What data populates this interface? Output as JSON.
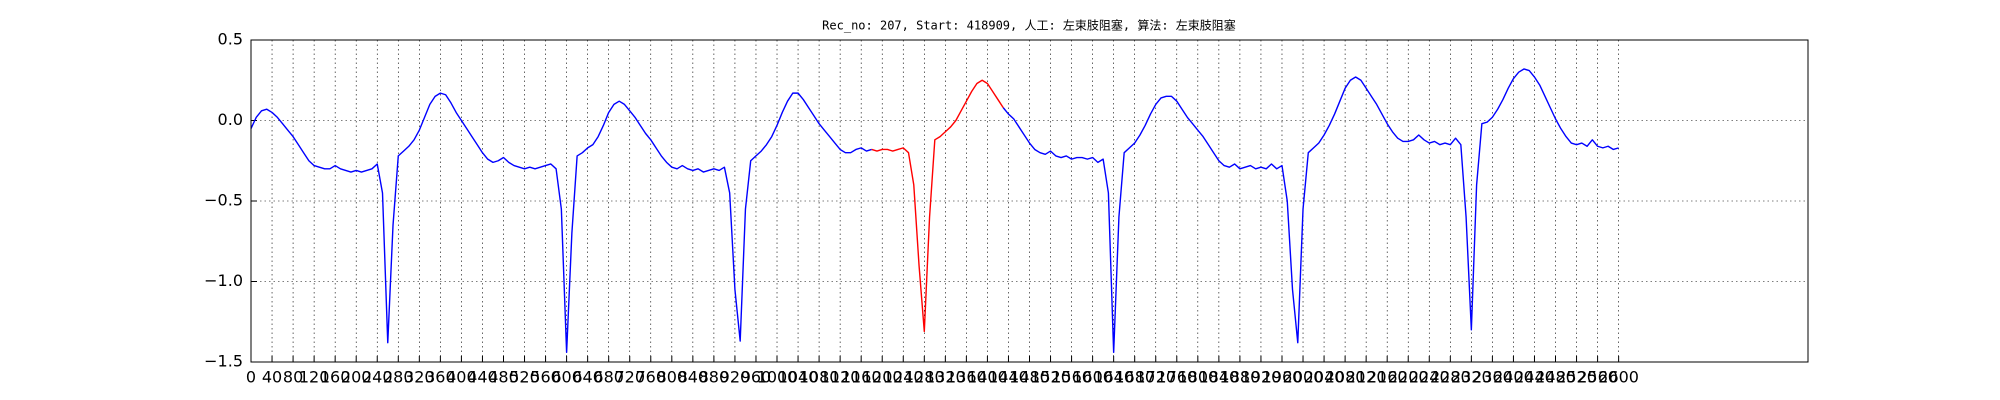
{
  "chart_data": {
    "type": "line",
    "title": "Rec_no: 207, Start: 418909, 人工: 左束肢阻塞, 算法: 左束肢阻塞",
    "x": [
      0,
      10,
      20,
      30,
      40,
      50,
      60,
      70,
      80,
      90,
      100,
      110,
      120,
      130,
      140,
      150,
      160,
      170,
      180,
      190,
      200,
      210,
      220,
      230,
      240,
      250,
      260,
      270,
      280,
      290,
      300,
      310,
      320,
      330,
      340,
      350,
      360,
      370,
      380,
      390,
      400,
      410,
      420,
      430,
      440,
      450,
      460,
      470,
      480,
      490,
      500,
      510,
      520,
      530,
      540,
      550,
      560,
      570,
      580,
      590,
      600,
      610,
      620,
      630,
      640,
      650,
      660,
      670,
      680,
      690,
      700,
      710,
      720,
      730,
      740,
      750,
      760,
      770,
      780,
      790,
      800,
      810,
      820,
      830,
      840,
      850,
      860,
      870,
      880,
      890,
      900,
      910,
      920,
      930,
      940,
      950,
      960,
      970,
      980,
      990,
      1000,
      1010,
      1020,
      1030,
      1040,
      1050,
      1060,
      1070,
      1080,
      1090,
      1100,
      1110,
      1120,
      1130,
      1140,
      1150,
      1160,
      1170,
      1180,
      1190,
      1200,
      1210,
      1220,
      1230,
      1240,
      1250,
      1260,
      1270,
      1280,
      1290,
      1300,
      1310,
      1320,
      1330,
      1340,
      1350,
      1360,
      1370,
      1380,
      1390,
      1400,
      1410,
      1420,
      1430,
      1440,
      1450,
      1460,
      1470,
      1480,
      1490,
      1500,
      1510,
      1520,
      1530,
      1540,
      1550,
      1560,
      1570,
      1580,
      1590,
      1600,
      1610,
      1620,
      1630,
      1640,
      1650,
      1660,
      1670,
      1680,
      1690,
      1700,
      1710,
      1720,
      1730,
      1740,
      1750,
      1760,
      1770,
      1780,
      1790,
      1800,
      1810,
      1820,
      1830,
      1840,
      1850,
      1860,
      1870,
      1880,
      1890,
      1900,
      1910,
      1920,
      1930,
      1940,
      1950,
      1960,
      1970,
      1980,
      1990,
      2000,
      2010,
      2020,
      2030,
      2040,
      2050,
      2060,
      2070,
      2080,
      2090,
      2100,
      2110,
      2120,
      2130,
      2140,
      2150,
      2160,
      2170,
      2180,
      2190,
      2200,
      2210,
      2220,
      2230,
      2240,
      2250,
      2260,
      2270,
      2280,
      2290,
      2300,
      2310,
      2320,
      2330,
      2340,
      2350,
      2360,
      2370,
      2380,
      2390,
      2400,
      2410,
      2420,
      2430,
      2440,
      2450,
      2460,
      2470,
      2480,
      2490,
      2500,
      2510,
      2520,
      2530,
      2540,
      2550,
      2560,
      2570,
      2580,
      2590,
      2600
    ],
    "series": [
      {
        "color": "#0000ff",
        "values": [
          -0.05,
          0.02,
          0.06,
          0.07,
          0.05,
          0.02,
          -0.02,
          -0.06,
          -0.1,
          -0.15,
          -0.2,
          -0.25,
          -0.28,
          -0.29,
          -0.3,
          -0.3,
          -0.28,
          -0.3,
          -0.31,
          -0.32,
          -0.31,
          -0.32,
          -0.31,
          -0.3,
          -0.27,
          -0.45,
          -1.38,
          -0.65,
          -0.22,
          -0.19,
          -0.16,
          -0.12,
          -0.06,
          0.02,
          0.1,
          0.15,
          0.17,
          0.16,
          0.11,
          0.05,
          0,
          -0.05,
          -0.1,
          -0.15,
          -0.2,
          -0.24,
          -0.26,
          -0.25,
          -0.23,
          -0.26,
          -0.28,
          -0.29,
          -0.3,
          -0.29,
          -0.3,
          -0.29,
          -0.28,
          -0.27,
          -0.3,
          -0.55,
          -1.44,
          -0.7,
          -0.22,
          -0.2,
          -0.17,
          -0.15,
          -0.1,
          -0.03,
          0.05,
          0.1,
          0.12,
          0.1,
          0.06,
          0.02,
          -0.03,
          -0.08,
          -0.12,
          -0.17,
          -0.22,
          -0.26,
          -0.29,
          -0.3,
          -0.28,
          -0.3,
          -0.31,
          -0.3,
          -0.32,
          -0.31,
          -0.3,
          -0.31,
          -0.29,
          -0.45,
          -1.05,
          -1.37,
          -0.55,
          -0.25,
          -0.22,
          -0.19,
          -0.15,
          -0.1,
          -0.03,
          0.05,
          0.12,
          0.17,
          0.17,
          0.13,
          0.08,
          0.03,
          -0.02,
          -0.06,
          -0.1,
          -0.14,
          -0.18,
          -0.2,
          -0.2,
          -0.18,
          -0.17,
          -0.19,
          -0.18,
          null,
          null,
          null,
          null,
          null,
          null,
          null,
          null,
          null,
          null,
          null,
          null,
          null,
          null,
          null,
          null,
          null,
          null,
          null,
          null,
          null,
          null,
          null,
          null,
          0.08,
          0.04,
          0.01,
          -0.04,
          -0.09,
          -0.14,
          -0.18,
          -0.2,
          -0.21,
          -0.19,
          -0.22,
          -0.23,
          -0.22,
          -0.24,
          -0.23,
          -0.23,
          -0.24,
          -0.23,
          -0.26,
          -0.24,
          -0.45,
          -1.44,
          -0.6,
          -0.2,
          -0.17,
          -0.14,
          -0.09,
          -0.03,
          0.04,
          0.1,
          0.14,
          0.15,
          0.15,
          0.12,
          0.07,
          0.02,
          -0.02,
          -0.06,
          -0.1,
          -0.15,
          -0.2,
          -0.25,
          -0.28,
          -0.29,
          -0.27,
          -0.3,
          -0.29,
          -0.28,
          -0.3,
          -0.29,
          -0.3,
          -0.27,
          -0.3,
          -0.28,
          -0.5,
          -1.05,
          -1.38,
          -0.55,
          -0.2,
          -0.17,
          -0.14,
          -0.09,
          -0.03,
          0.04,
          0.12,
          0.2,
          0.25,
          0.27,
          0.25,
          0.2,
          0.15,
          0.1,
          0.04,
          -0.02,
          -0.07,
          -0.11,
          -0.13,
          -0.13,
          -0.12,
          -0.09,
          -0.12,
          -0.14,
          -0.13,
          -0.15,
          -0.14,
          -0.15,
          -0.11,
          -0.15,
          -0.6,
          -1.3,
          -0.4,
          -0.02,
          -0.01,
          0.02,
          0.07,
          0.13,
          0.2,
          0.26,
          0.3,
          0.32,
          0.31,
          0.27,
          0.22,
          0.15,
          0.08,
          0.01,
          -0.05,
          -0.1,
          -0.14,
          -0.15,
          -0.14,
          -0.16,
          -0.12,
          -0.16,
          -0.17,
          -0.16,
          -0.18,
          -0.17
        ]
      },
      {
        "color": "#ff0000",
        "values": [
          null,
          null,
          null,
          null,
          null,
          null,
          null,
          null,
          null,
          null,
          null,
          null,
          null,
          null,
          null,
          null,
          null,
          null,
          null,
          null,
          null,
          null,
          null,
          null,
          null,
          null,
          null,
          null,
          null,
          null,
          null,
          null,
          null,
          null,
          null,
          null,
          null,
          null,
          null,
          null,
          null,
          null,
          null,
          null,
          null,
          null,
          null,
          null,
          null,
          null,
          null,
          null,
          null,
          null,
          null,
          null,
          null,
          null,
          null,
          null,
          null,
          null,
          null,
          null,
          null,
          null,
          null,
          null,
          null,
          null,
          null,
          null,
          null,
          null,
          null,
          null,
          null,
          null,
          null,
          null,
          null,
          null,
          null,
          null,
          null,
          null,
          null,
          null,
          null,
          null,
          null,
          null,
          null,
          null,
          null,
          null,
          null,
          null,
          null,
          null,
          null,
          null,
          null,
          null,
          null,
          null,
          null,
          null,
          null,
          null,
          null,
          null,
          null,
          null,
          null,
          null,
          null,
          null,
          -0.18,
          -0.19,
          -0.18,
          -0.18,
          -0.19,
          -0.18,
          -0.17,
          -0.2,
          -0.4,
          -0.9,
          -1.31,
          -0.6,
          -0.12,
          -0.1,
          -0.07,
          -0.04,
          0,
          0.06,
          0.12,
          0.18,
          0.23,
          0.25,
          0.23,
          0.18,
          0.13,
          0.08,
          null,
          null,
          null,
          null,
          null,
          null,
          null,
          null,
          null,
          null,
          null,
          null,
          null,
          null,
          null,
          null,
          null,
          null,
          null,
          null,
          null,
          null,
          null,
          null,
          null,
          null,
          null,
          null,
          null,
          null,
          null,
          null,
          null,
          null,
          null,
          null,
          null,
          null,
          null,
          null,
          null,
          null,
          null,
          null,
          null,
          null,
          null,
          null,
          null,
          null,
          null,
          null,
          null,
          null,
          null,
          null,
          null,
          null,
          null,
          null,
          null,
          null,
          null,
          null,
          null,
          null,
          null,
          null,
          null,
          null,
          null,
          null,
          null,
          null,
          null,
          null,
          null,
          null,
          null,
          null,
          null,
          null,
          null,
          null,
          null,
          null,
          null,
          null,
          null,
          null,
          null,
          null,
          null,
          null,
          null,
          null,
          null,
          null,
          null,
          null,
          null,
          null,
          null,
          null,
          null,
          null,
          null,
          null,
          null,
          null,
          null,
          null,
          null,
          null,
          null,
          null,
          null
        ]
      }
    ],
    "xlim": [
      0,
      2960
    ],
    "xticks": [
      0,
      40,
      80,
      120,
      160,
      200,
      240,
      280,
      320,
      360,
      400,
      440,
      480,
      520,
      560,
      600,
      640,
      680,
      720,
      760,
      800,
      840,
      880,
      920,
      960,
      1000,
      1040,
      1080,
      1120,
      1160,
      1200,
      1240,
      1280,
      1320,
      1360,
      1400,
      1440,
      1480,
      1520,
      1560,
      1600,
      1640,
      1680,
      1720,
      1760,
      1800,
      1840,
      1880,
      1920,
      1960,
      2000,
      2040,
      2080,
      2120,
      2160,
      2200,
      2240,
      2280,
      2320,
      2360,
      2400,
      2440,
      2480,
      2520,
      2560,
      2600
    ],
    "ylim": [
      -1.5,
      0.5
    ],
    "yticks": [
      0.5,
      {
        "value": 0,
        "label": "0.0"
      },
      {
        "value": -0.5,
        "label": "−0.5"
      },
      {
        "value": -1,
        "label": "−1.0"
      },
      {
        "value": -1.5,
        "label": "−1.5"
      }
    ],
    "grid": true
  }
}
